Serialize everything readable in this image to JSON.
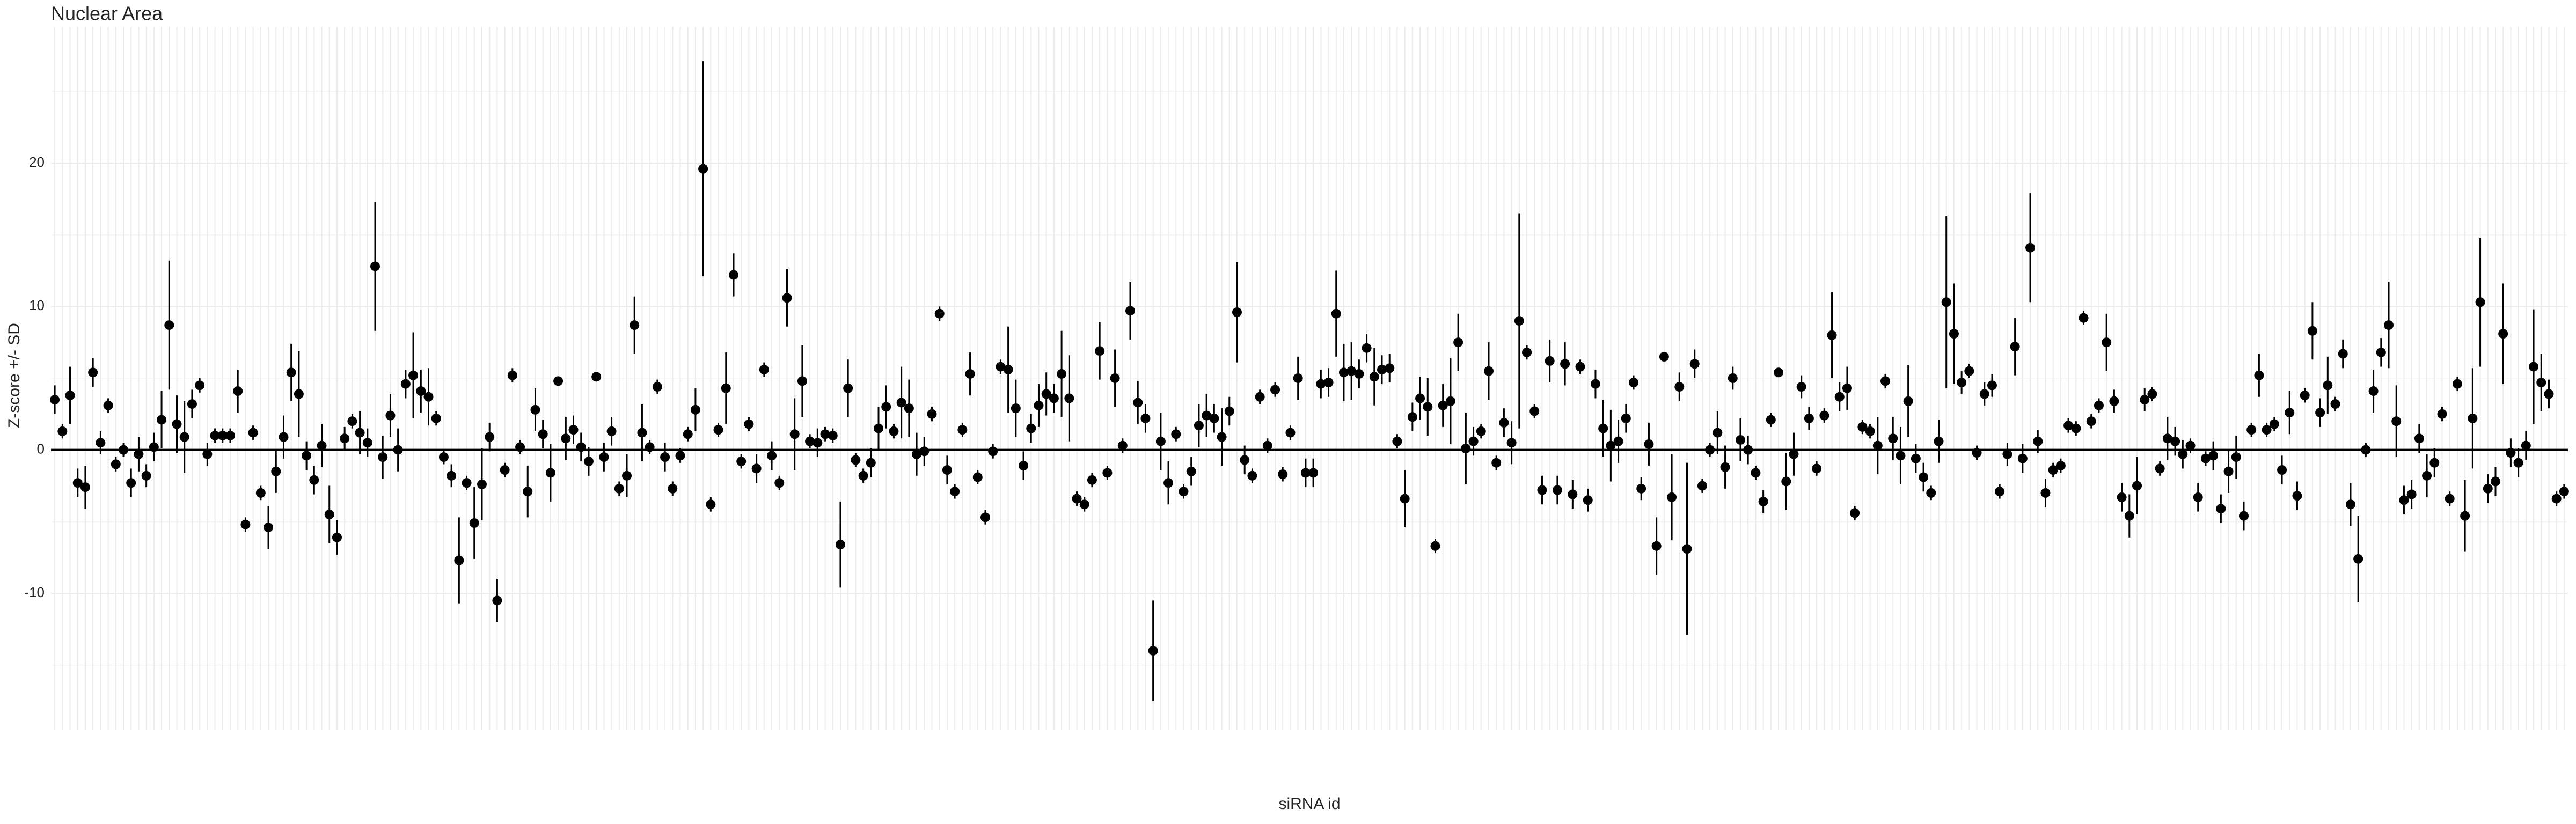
{
  "chart_data": {
    "type": "errorbar-dot",
    "title": "Nuclear Area",
    "x_label": "siRNA id",
    "y_label": "Z-score +/- SD",
    "categories": [
      null,
      null,
      null,
      null,
      null,
      null,
      null,
      null,
      null,
      null,
      null,
      null,
      null,
      null,
      null,
      null,
      null,
      null,
      null,
      null,
      null,
      null,
      null,
      null,
      null,
      null,
      null,
      null,
      null,
      null,
      null,
      null,
      null,
      null,
      null,
      null,
      null,
      null,
      null,
      null,
      null,
      null,
      null,
      null,
      null,
      null,
      null,
      null,
      null,
      null,
      null,
      null,
      null,
      null,
      null,
      null,
      null,
      null,
      null,
      null,
      null,
      null,
      null,
      null,
      null,
      null,
      null,
      null,
      null,
      null,
      null,
      null,
      null,
      null,
      null,
      null,
      null,
      null,
      null,
      null,
      null,
      null,
      null,
      null,
      null,
      null,
      null,
      null,
      null,
      null,
      null,
      null,
      null,
      null,
      null,
      null,
      null,
      null,
      null,
      null,
      null,
      null,
      null,
      null,
      null,
      null,
      null,
      null,
      null,
      null,
      null,
      null,
      null,
      null,
      null,
      null,
      null,
      null,
      null,
      null,
      null,
      null,
      null,
      null,
      null,
      null,
      null,
      null,
      null,
      null,
      null,
      null,
      null,
      null,
      null,
      null,
      null,
      null,
      null,
      null,
      null,
      null,
      null,
      null,
      null,
      null,
      null,
      null,
      null,
      null,
      null,
      null,
      null,
      null,
      null,
      null,
      null,
      null,
      null,
      null,
      null,
      null,
      null,
      null,
      null,
      null,
      null,
      null,
      null,
      null,
      null,
      null,
      null,
      null,
      null,
      null,
      null,
      null,
      null,
      null,
      null,
      null,
      null,
      null,
      null,
      null,
      null,
      null,
      null,
      null,
      null,
      null,
      null,
      null,
      null,
      null,
      null,
      null,
      null,
      null,
      null,
      null,
      null,
      null,
      null,
      null,
      null,
      null,
      null,
      null,
      null,
      null,
      null,
      null,
      null,
      null,
      null,
      null,
      null,
      null,
      null,
      null,
      null,
      null,
      null,
      null,
      null,
      null,
      null,
      null,
      null,
      null,
      null,
      null,
      null,
      null,
      null,
      null,
      null,
      null,
      null,
      null,
      null,
      null,
      null,
      null,
      null,
      null,
      null,
      null,
      null,
      null,
      null,
      null,
      null,
      null,
      null,
      null,
      null,
      null,
      null,
      null,
      null,
      null,
      null,
      null,
      null,
      null,
      null,
      null,
      null,
      null,
      null,
      null,
      null,
      null,
      null,
      null,
      null,
      null,
      null,
      null,
      null,
      null,
      null,
      null,
      null,
      null,
      null,
      null,
      null,
      null,
      null,
      null,
      null,
      null,
      null,
      null,
      null,
      null,
      null,
      null,
      null,
      null,
      null,
      null,
      null,
      null,
      null,
      null,
      null,
      null,
      null,
      null,
      null,
      null,
      null,
      null,
      null,
      null,
      null,
      null,
      null,
      null,
      null,
      null,
      null,
      null,
      null,
      null
    ],
    "values": [
      3.5,
      1.3,
      3.8,
      -2.3,
      -2.6,
      5.4,
      0.5,
      3.1,
      -1,
      0,
      -2.3,
      -0.3,
      -1.8,
      0.2,
      2.1,
      8.7,
      1.8,
      0.9,
      3.2,
      4.5,
      -0.3,
      1,
      1,
      1,
      4.1,
      -5.2,
      1.2,
      -3,
      -5.4,
      -1.5,
      0.9,
      5.4,
      3.9,
      -0.4,
      -2.1,
      0.3,
      -4.5,
      -6.1,
      0.8,
      2,
      1.2,
      0.5,
      12.8,
      -0.5,
      2.4,
      0,
      4.6,
      5.2,
      4.1,
      3.7,
      2.2,
      -0.5,
      -1.8,
      -7.7,
      -2.3,
      -5.1,
      -2.4,
      0.9,
      -10.5,
      -1.4,
      5.2,
      0.2,
      -2.9,
      2.8,
      1.1,
      -1.6,
      4.8,
      0.8,
      1.4,
      0.2,
      -0.8,
      5.1,
      -0.5,
      1.3,
      -2.7,
      -1.8,
      8.7,
      1.2,
      0.2,
      4.4,
      -0.5,
      -2.7,
      -0.4,
      1.1,
      2.8,
      19.6,
      -3.8,
      1.4,
      4.3,
      12.2,
      -0.8,
      1.8,
      -1.3,
      5.6,
      -0.4,
      -2.3,
      10.6,
      1.1,
      4.8,
      0.6,
      0.5,
      1.1,
      1,
      -6.6,
      4.3,
      -0.7,
      -1.8,
      -0.9,
      1.5,
      3,
      1.3,
      3.3,
      2.9,
      -0.3,
      -0.1,
      2.5,
      9.5,
      -1.4,
      -2.9,
      1.4,
      5.3,
      -1.9,
      -4.7,
      -0.1,
      5.8,
      5.6,
      2.9,
      -1.1,
      1.5,
      3.1,
      3.9,
      3.6,
      5.3,
      3.6,
      -3.4,
      -3.8,
      -2.1,
      6.9,
      -1.6,
      5,
      0.3,
      9.7,
      3.3,
      2.2,
      -14,
      0.6,
      -2.3,
      1.1,
      -2.9,
      -1.5,
      1.7,
      2.4,
      2.2,
      0.9,
      2.7,
      9.6,
      -0.7,
      -1.8,
      3.7,
      0.3,
      4.2,
      -1.7,
      1.2,
      5,
      -1.6,
      -1.6,
      4.6,
      4.7,
      9.5,
      5.4,
      5.5,
      5.3,
      7.1,
      5.1,
      5.6,
      5.7,
      0.6,
      -3.4,
      2.3,
      3.6,
      3,
      -6.7,
      3.1,
      3.4,
      7.5,
      0.1,
      0.6,
      1.3,
      5.5,
      -0.9,
      1.9,
      0.5,
      9,
      6.8,
      2.7,
      -2.8,
      6.2,
      -2.8,
      6,
      -3.1,
      5.8,
      -3.5,
      4.6,
      1.5,
      0.3,
      0.6,
      2.2,
      4.7,
      -2.7,
      0.4,
      -6.7,
      6.5,
      -3.3,
      4.4,
      -6.9,
      6,
      -2.5,
      0,
      1.2,
      -1.2,
      5,
      0.7,
      0,
      -1.6,
      -3.6,
      2.1,
      5.4,
      -2.2,
      -0.3,
      4.4,
      2.2,
      -1.3,
      2.4,
      8,
      3.7,
      4.3,
      -4.4,
      1.6,
      1.3,
      0.3,
      4.8,
      0.8,
      -0.4,
      3.4,
      -0.6,
      -1.9,
      -3,
      0.6,
      10.3,
      8.1,
      4.7,
      5.5,
      -0.2,
      3.9,
      4.5,
      -2.9,
      -0.3,
      7.2,
      -0.6,
      14.1,
      0.6,
      -3,
      -1.4,
      -1.1,
      1.7,
      1.5,
      9.2,
      2,
      3.1,
      7.5,
      3.4,
      -3.3,
      -4.6,
      -2.5,
      3.5,
      3.9,
      -1.3,
      0.8,
      0.6,
      -0.3,
      0.3,
      -3.3,
      -0.6,
      -0.4,
      -4.1,
      -1.5,
      -0.5,
      -4.6,
      1.4,
      5.2,
      1.4,
      1.8,
      -1.4,
      2.6,
      -3.2,
      3.8,
      8.3,
      2.6,
      4.5,
      3.2,
      6.7,
      -3.8,
      -7.6,
      0,
      4.1,
      6.8,
      8.7,
      2,
      -3.5,
      -3.1,
      0.8,
      -1.8,
      -0.9,
      2.5,
      -3.4,
      4.6,
      -4.6,
      2.2,
      10.3,
      -2.7,
      -2.2,
      8.1,
      -0.2,
      -0.9,
      0.3,
      5.8,
      4.7,
      3.9,
      -3.4,
      -2.9
    ],
    "errors": [
      1,
      0.5,
      2,
      1,
      1.5,
      1,
      0.8,
      0.5,
      0.5,
      0.5,
      1,
      1.2,
      0.8,
      1,
      2,
      4.5,
      2,
      2.5,
      1,
      0.5,
      0.8,
      0.5,
      0.5,
      0.5,
      1.5,
      0.5,
      0.5,
      0.5,
      1.5,
      1.5,
      1.5,
      2,
      3,
      1,
      1,
      1.5,
      2,
      1.2,
      0.8,
      0.5,
      1.5,
      1,
      4.5,
      1.5,
      1.5,
      1.5,
      1,
      3,
      1.5,
      2,
      0.5,
      0.5,
      0.8,
      3,
      0.5,
      2.5,
      2.5,
      1,
      1.5,
      0.5,
      0.5,
      0.5,
      1.8,
      1.5,
      1,
      2,
      0.3,
      1.5,
      1,
      1,
      1,
      0.3,
      1,
      1,
      0.5,
      1.5,
      2,
      2,
      0.5,
      0.5,
      1,
      0.5,
      0.5,
      0.5,
      1.5,
      7.5,
      0.5,
      0.5,
      2.5,
      1.5,
      0.5,
      0.5,
      1,
      0.5,
      1,
      0.5,
      2,
      2.5,
      2.5,
      0.5,
      1,
      0.5,
      0.5,
      3,
      2,
      0.5,
      0.5,
      1,
      1.5,
      1.5,
      0.5,
      2.5,
      2,
      1.5,
      1,
      0.5,
      0.5,
      1,
      0.5,
      0.5,
      1.5,
      0.5,
      0.5,
      0.5,
      0.5,
      3,
      2,
      1,
      1,
      1.5,
      1.5,
      1,
      3,
      3,
      0.5,
      0.5,
      0.5,
      2,
      0.5,
      2,
      0.5,
      2,
      1.5,
      1,
      3.5,
      2,
      1.5,
      0.5,
      0.5,
      1,
      1.5,
      1.5,
      1,
      2,
      1,
      3.5,
      1,
      0.5,
      0.5,
      0.5,
      0.5,
      0.5,
      0.5,
      1.5,
      1,
      1,
      1,
      1,
      3,
      2,
      2,
      1,
      1,
      2,
      1,
      1,
      0.5,
      2,
      1,
      1.5,
      2,
      0.5,
      1.5,
      3,
      2,
      2.5,
      1,
      0.5,
      2,
      0.5,
      1,
      1.5,
      7.5,
      0.5,
      0.5,
      1,
      1.5,
      1,
      1.5,
      1,
      0.5,
      0.8,
      1,
      2,
      2.5,
      1.5,
      1,
      0.5,
      0.8,
      1.5,
      2,
      0.3,
      3,
      1,
      6,
      1,
      0.5,
      0.5,
      1.5,
      1.5,
      0.8,
      1.5,
      1,
      0.5,
      0.8,
      0.5,
      0.3,
      2,
      1.5,
      0.8,
      0.8,
      0.5,
      0.5,
      3,
      1,
      1.5,
      0.5,
      0.5,
      0.5,
      2,
      0.5,
      1.5,
      2,
      2.5,
      1,
      1,
      0.5,
      1.5,
      6,
      3.5,
      0.8,
      0.5,
      0.5,
      0.8,
      0.8,
      0.5,
      0.8,
      2,
      1,
      3.8,
      0.8,
      1,
      0.5,
      0.5,
      0.5,
      0.5,
      0.5,
      0.5,
      0.5,
      2,
      0.8,
      1,
      1.5,
      2,
      0.8,
      0.5,
      0.5,
      1.5,
      1,
      1,
      0.5,
      1,
      0.5,
      1,
      1,
      1.5,
      1.5,
      1,
      0.5,
      1.5,
      0.5,
      0.5,
      1,
      1.5,
      1,
      0.5,
      2,
      1,
      2,
      0.5,
      1,
      1.5,
      3,
      0.5,
      1.5,
      1,
      3,
      2.5,
      1,
      1,
      1,
      1.5,
      1,
      0.5,
      0.5,
      0.5,
      2.5,
      3.5,
      4.5,
      1,
      1,
      3.5,
      1,
      1,
      1,
      4,
      2,
      1,
      0.5,
      0.5
    ],
    "color": "#000000",
    "ylim": [
      -19.5,
      29.5
    ],
    "yticks": [
      -10,
      0,
      10,
      20
    ],
    "grid": true
  }
}
